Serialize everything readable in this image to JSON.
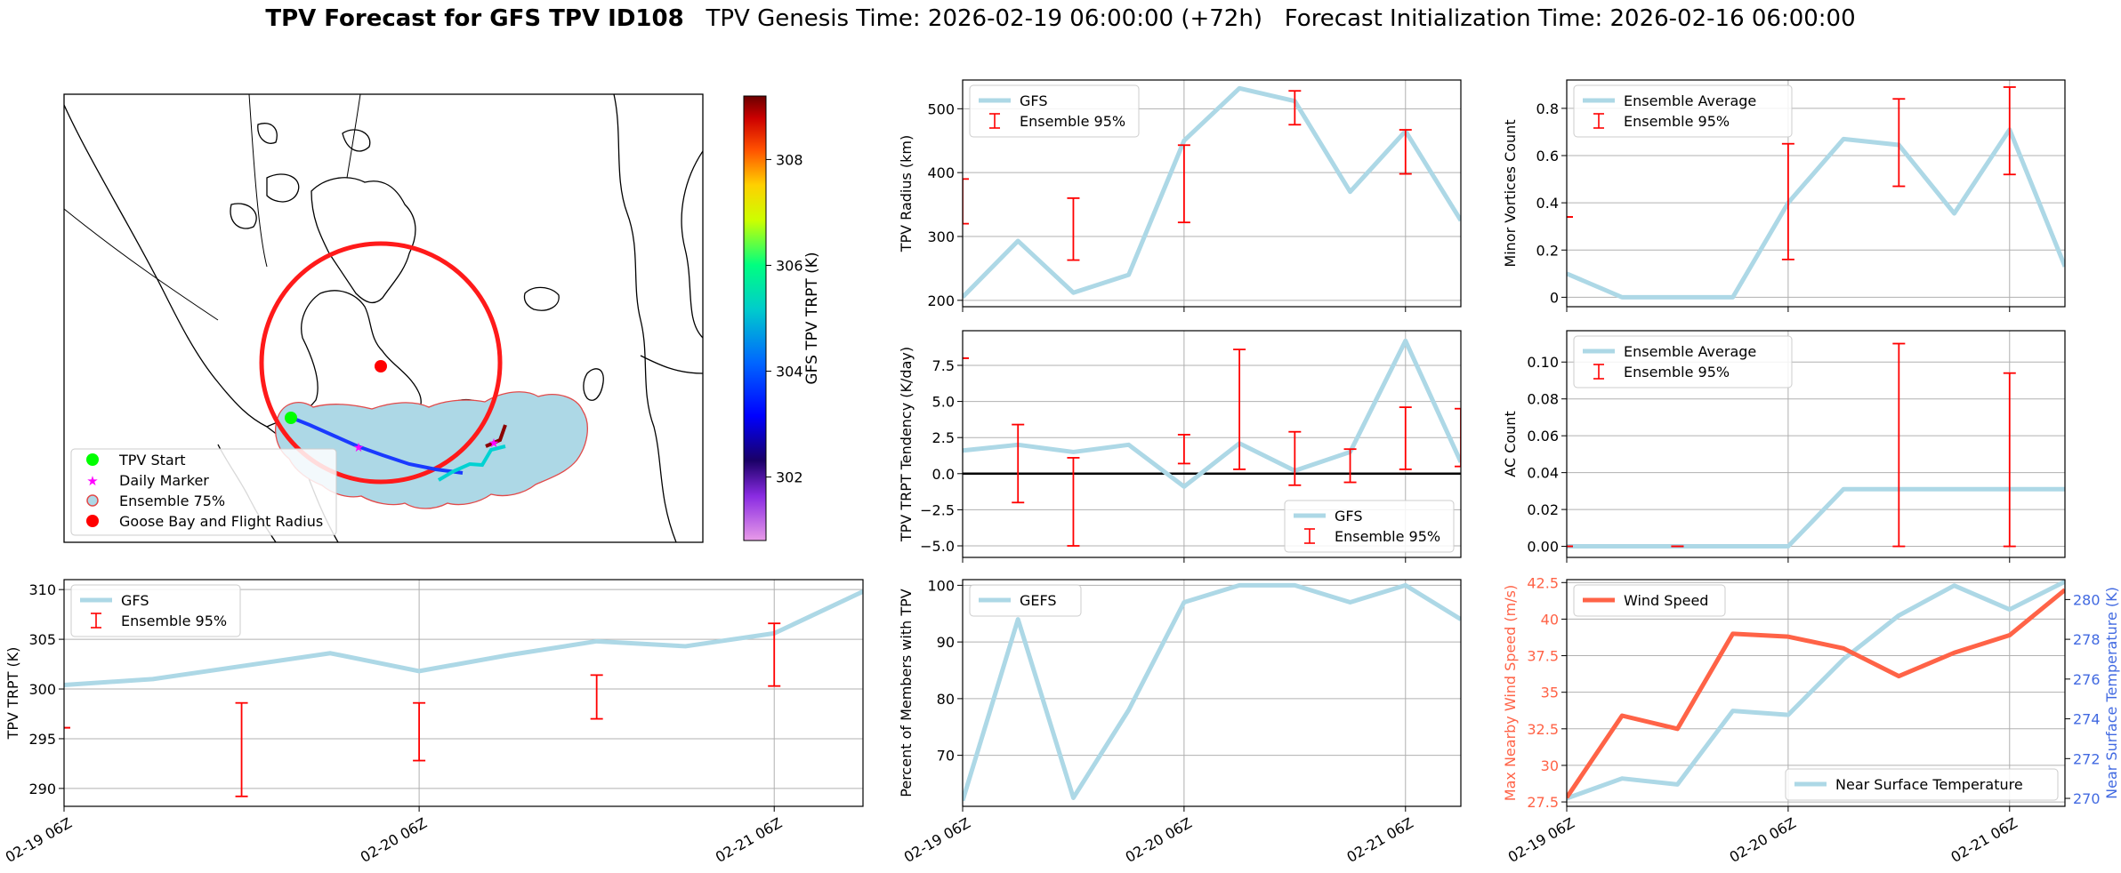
{
  "header": {
    "title_bold": "TPV Forecast for GFS TPV ID108",
    "title_rest": "   TPV Genesis Time: 2026-02-19 06:00:00 (+72h)   Forecast Initialization Time: 2026-02-16 06:00:00"
  },
  "colors": {
    "gfs": "#add8e6",
    "ens_bar": "#ff0000",
    "wind": "#ff6347",
    "temp_axis": "#4169e1",
    "wind_axis": "#ff6347",
    "goose": "#ff0000",
    "start": "#00ff00",
    "marker": "#ff00ff"
  },
  "map": {
    "legend": [
      "TPV Start",
      "Daily Marker",
      "Ensemble 75%",
      "Goose Bay and Flight Radius"
    ],
    "colorbar_label": "GFS TPV TRPT (K)",
    "colorbar_ticks": [
      "302",
      "304",
      "306",
      "308"
    ],
    "colorbar_range": [
      300.8,
      309.2
    ]
  },
  "chart_data": [
    {
      "id": "trpt",
      "type": "line",
      "ylabel": "TPV TRPT (K)",
      "ylim": [
        288.2,
        311
      ],
      "yticks": [
        290,
        295,
        300,
        305,
        310
      ],
      "x": [
        0,
        6,
        12,
        18,
        24,
        30,
        36,
        42,
        48,
        54
      ],
      "xticks": [
        0,
        24,
        48
      ],
      "xticklabels": [
        "02-19 06Z",
        "02-20 06Z",
        "02-21 06Z"
      ],
      "xlim": [
        0,
        54
      ],
      "series": [
        {
          "name": "GFS",
          "values": [
            300.4,
            301.0,
            302.3,
            303.6,
            301.8,
            303.4,
            304.8,
            304.3,
            305.6,
            309.8
          ]
        }
      ],
      "ensemble": {
        "name": "Ensemble 95%",
        "x": [
          0,
          12,
          24,
          36,
          48
        ],
        "low": [
          296.1,
          289.2,
          292.8,
          297.0,
          300.3
        ],
        "high": [
          296.1,
          298.6,
          298.6,
          301.4,
          306.6
        ]
      },
      "legend": [
        "GFS",
        "Ensemble 95%"
      ]
    },
    {
      "id": "radius",
      "type": "line",
      "ylabel": "TPV Radius (km)",
      "ylim": [
        190,
        545
      ],
      "yticks": [
        200,
        300,
        400,
        500
      ],
      "x": [
        0,
        6,
        12,
        18,
        24,
        30,
        36,
        42,
        48,
        54
      ],
      "xlim": [
        0,
        54
      ],
      "series": [
        {
          "name": "GFS",
          "values": [
            205,
            293,
            212,
            240,
            450,
            532,
            512,
            370,
            465,
            325
          ]
        }
      ],
      "ensemble": {
        "name": "Ensemble 95%",
        "x": [
          0,
          12,
          24,
          36,
          48
        ],
        "low": [
          320,
          263,
          322,
          475,
          398
        ],
        "high": [
          390,
          360,
          443,
          528,
          467
        ]
      },
      "legend": [
        "GFS",
        "Ensemble 95%"
      ]
    },
    {
      "id": "tendency",
      "type": "line",
      "ylabel": "TPV TRPT Tendency (K/day)",
      "ylim": [
        -5.8,
        9.9
      ],
      "yticks": [
        -5.0,
        -2.5,
        0.0,
        2.5,
        5.0,
        7.5
      ],
      "yticklabels": [
        "−5.0",
        "−2.5",
        "0.0",
        "2.5",
        "5.0",
        "7.5"
      ],
      "x": [
        0,
        6,
        12,
        18,
        24,
        30,
        36,
        42,
        48,
        54
      ],
      "xlim": [
        0,
        54
      ],
      "series": [
        {
          "name": "GFS",
          "values": [
            1.6,
            2.0,
            1.5,
            2.0,
            -0.9,
            2.1,
            0.2,
            1.5,
            9.2,
            0.8
          ]
        }
      ],
      "ensemble": {
        "name": "Ensemble 95%",
        "x": [
          0,
          6,
          12,
          24,
          30,
          36,
          42,
          48,
          54
        ],
        "low": [
          8.0,
          -2.0,
          -5.0,
          0.7,
          0.3,
          -0.8,
          -0.6,
          0.3,
          0.5
        ],
        "high": [
          8.0,
          3.4,
          1.1,
          2.7,
          8.6,
          2.9,
          1.7,
          4.6,
          4.5
        ]
      },
      "zero_line": true,
      "legend": [
        "GFS",
        "Ensemble 95%"
      ]
    },
    {
      "id": "members",
      "type": "line",
      "ylabel": "Percent of Members with TPV",
      "ylim": [
        61,
        101
      ],
      "yticks": [
        70,
        80,
        90,
        100
      ],
      "x": [
        0,
        6,
        12,
        18,
        24,
        30,
        36,
        42,
        48,
        54
      ],
      "xticks": [
        0,
        24,
        48
      ],
      "xticklabels": [
        "02-19 06Z",
        "02-20 06Z",
        "02-21 06Z"
      ],
      "xlim": [
        0,
        54
      ],
      "series": [
        {
          "name": "GEFS",
          "values": [
            62,
            94,
            62.5,
            78,
            97,
            100,
            100,
            97,
            100,
            94
          ]
        }
      ],
      "legend": [
        "GEFS"
      ]
    },
    {
      "id": "minor",
      "type": "line",
      "ylabel": "Minor Vortices Count",
      "ylim": [
        -0.04,
        0.92
      ],
      "yticks": [
        0.0,
        0.2,
        0.4,
        0.6,
        0.8
      ],
      "x": [
        0,
        6,
        12,
        18,
        24,
        30,
        36,
        42,
        48,
        54
      ],
      "xlim": [
        0,
        54
      ],
      "series": [
        {
          "name": "Ensemble Average",
          "values": [
            0.1,
            0.0,
            0.0,
            0.0,
            0.4,
            0.67,
            0.645,
            0.355,
            0.71,
            0.13
          ]
        }
      ],
      "ensemble": {
        "name": "Ensemble 95%",
        "x": [
          0,
          24,
          36,
          48
        ],
        "low": [
          0.34,
          0.16,
          0.47,
          0.52
        ],
        "high": [
          0.34,
          0.65,
          0.84,
          0.89
        ]
      },
      "legend": [
        "Ensemble Average",
        "Ensemble 95%"
      ]
    },
    {
      "id": "ac",
      "type": "line",
      "ylabel": "AC Count",
      "ylim": [
        -0.006,
        0.117
      ],
      "yticks": [
        0.0,
        0.02,
        0.04,
        0.06,
        0.08,
        0.1
      ],
      "yticklabels": [
        "0.00",
        "0.02",
        "0.04",
        "0.06",
        "0.08",
        "0.10"
      ],
      "x": [
        0,
        6,
        12,
        18,
        24,
        30,
        36,
        42,
        48,
        54
      ],
      "xlim": [
        0,
        54
      ],
      "series": [
        {
          "name": "Ensemble Average",
          "values": [
            0,
            0,
            0,
            0,
            0,
            0.031,
            0.031,
            0.031,
            0.031,
            0.031
          ]
        }
      ],
      "ensemble": {
        "name": "Ensemble 95%",
        "x": [
          0,
          12,
          36,
          48
        ],
        "low": [
          0,
          0,
          0,
          0
        ],
        "high": [
          0,
          0,
          0.11,
          0.094
        ]
      },
      "legend": [
        "Ensemble Average",
        "Ensemble 95%"
      ]
    },
    {
      "id": "wind",
      "type": "line",
      "ylabel": "Max Nearby Wind Speed (m/s)",
      "y2label": "Near Surface Temperature (K)",
      "ylim": [
        27.2,
        42.7
      ],
      "yticks": [
        27.5,
        30.0,
        32.5,
        35.0,
        37.5,
        40.0,
        42.5
      ],
      "y2lim": [
        269.6,
        281.0
      ],
      "y2ticks": [
        270,
        272,
        274,
        276,
        278,
        280
      ],
      "x": [
        0,
        6,
        12,
        18,
        24,
        30,
        36,
        42,
        48,
        54
      ],
      "xticks": [
        0,
        24,
        48
      ],
      "xticklabels": [
        "02-19 06Z",
        "02-20 06Z",
        "02-21 06Z"
      ],
      "xlim": [
        0,
        54
      ],
      "series": [
        {
          "name": "Wind Speed",
          "values": [
            27.8,
            33.4,
            32.5,
            39.0,
            38.8,
            38.0,
            36.1,
            37.7,
            38.9,
            42.0
          ]
        },
        {
          "name": "Near Surface Temperature",
          "axis": "right",
          "values": [
            270.0,
            271.0,
            270.7,
            274.4,
            274.2,
            277.0,
            279.2,
            280.7,
            279.5,
            280.9
          ]
        }
      ],
      "legend": [
        "Wind Speed",
        "Near Surface Temperature"
      ]
    }
  ]
}
